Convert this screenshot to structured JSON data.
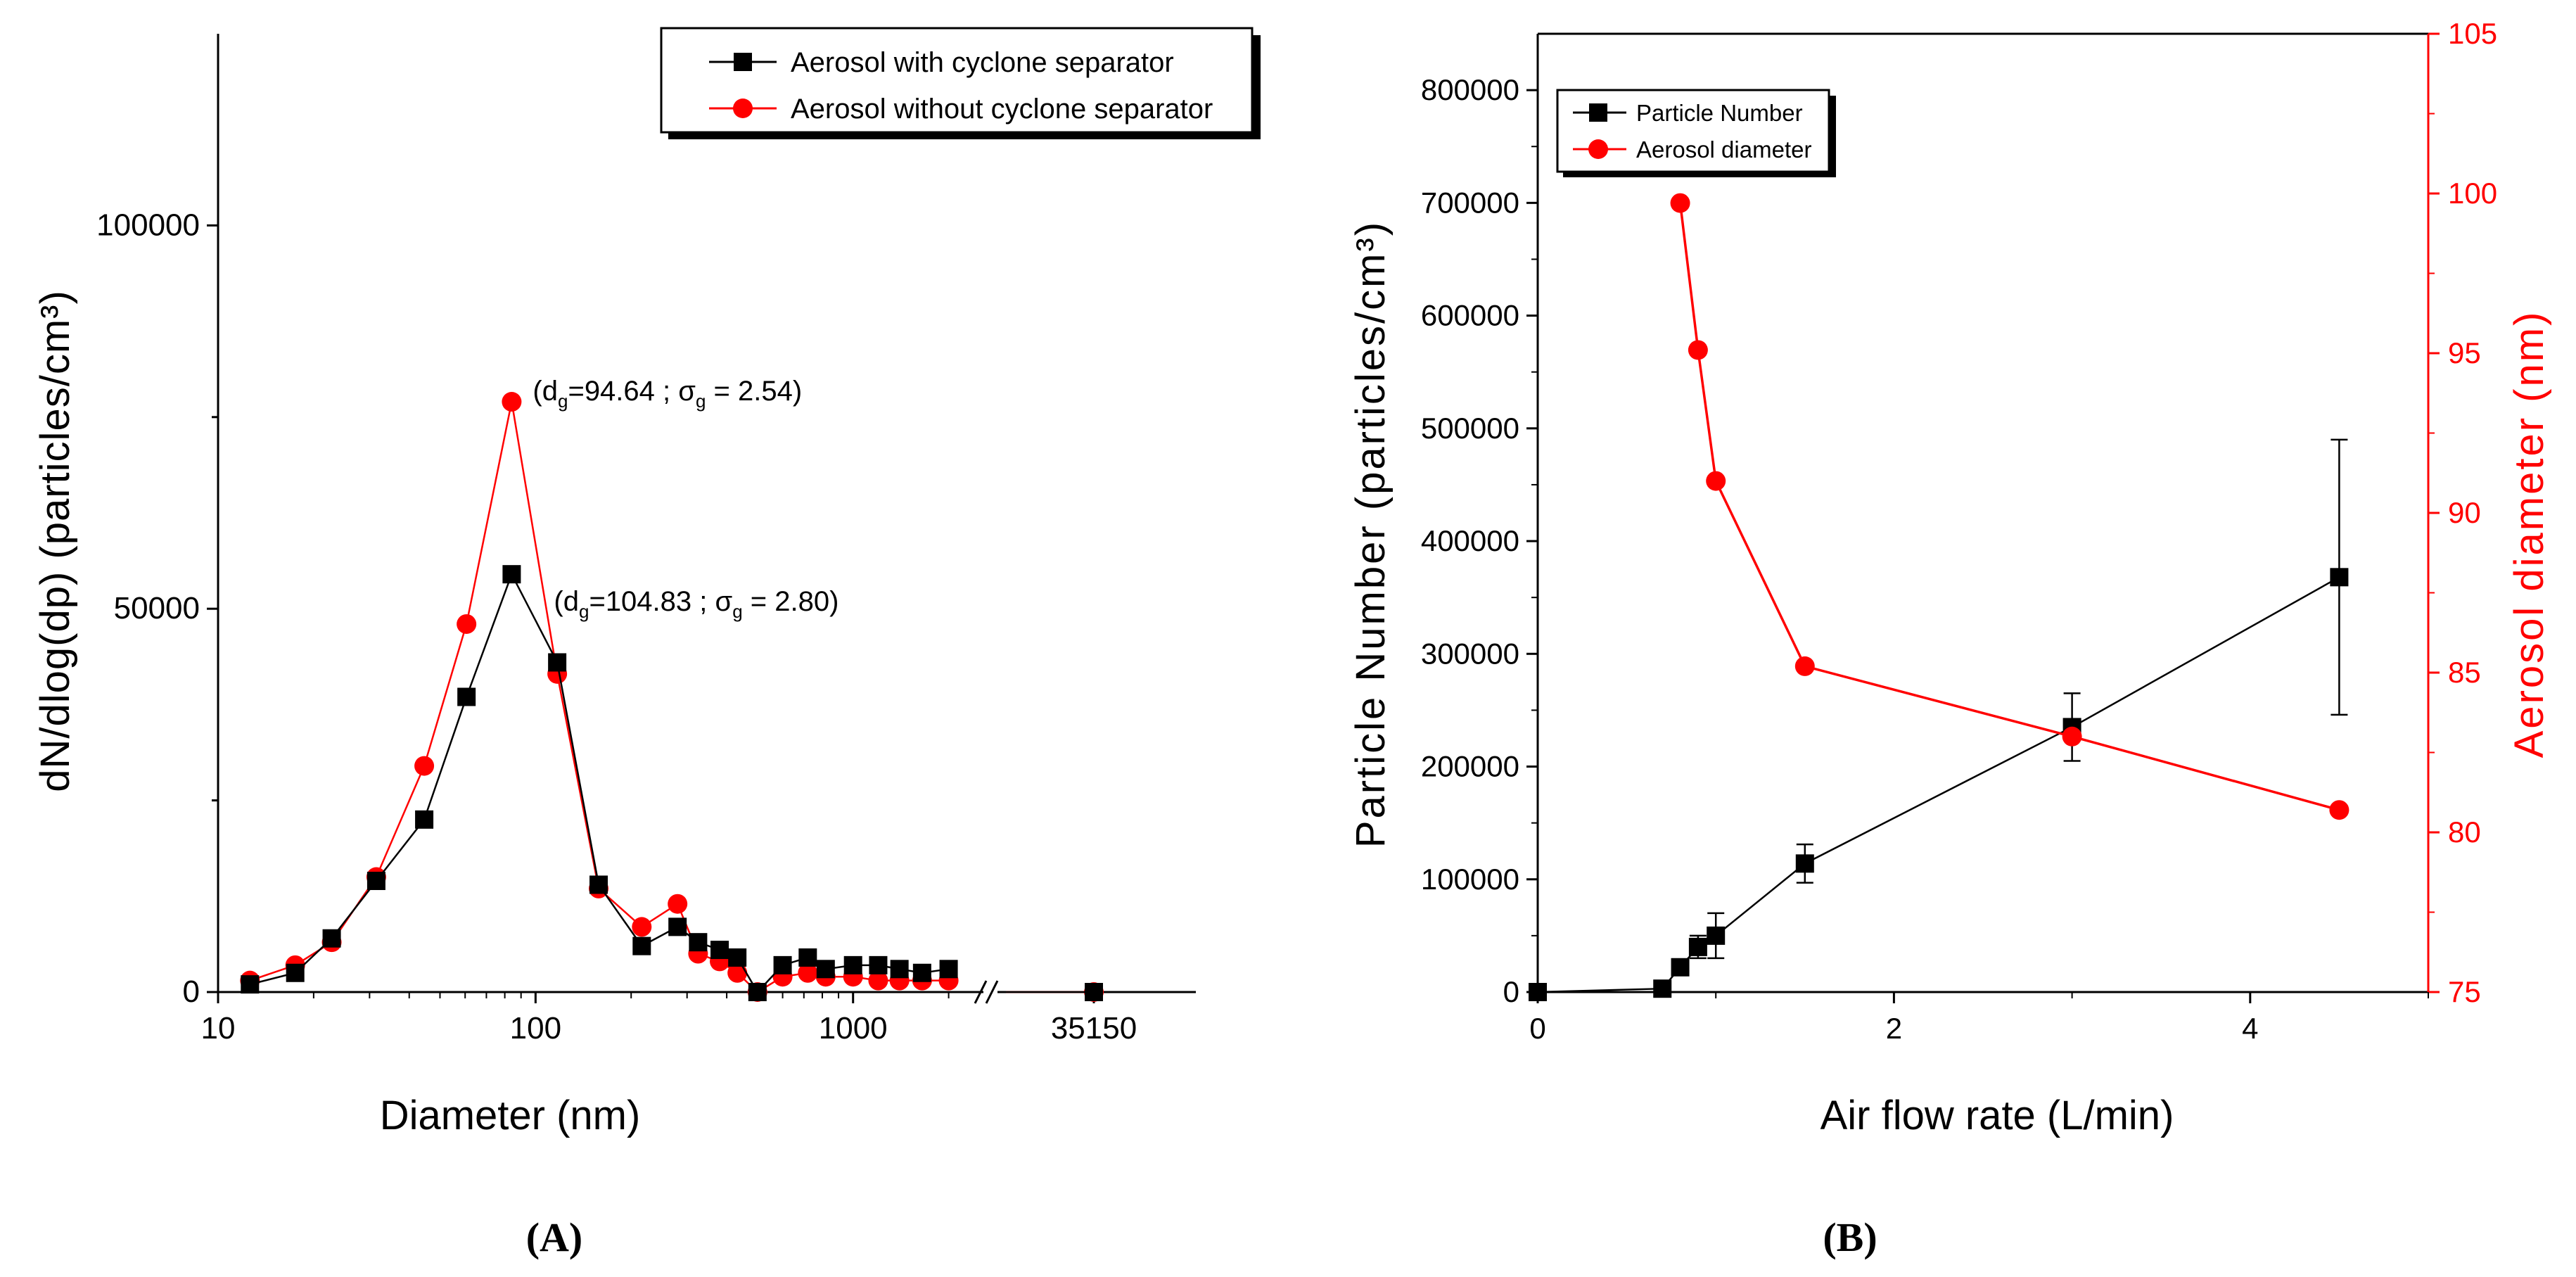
{
  "figure": {
    "panel_a_label": "(A)",
    "panel_b_label": "(B)"
  },
  "colors": {
    "black": "#000000",
    "red": "#ff0000"
  },
  "chart_data": [
    {
      "id": "A",
      "type": "line",
      "xscale": "log",
      "xlabel": "Diameter (nm)",
      "ylabel": "dN/dlog(dp) (particles/cm³)",
      "x_ticks": [
        "10",
        "100",
        "1000"
      ],
      "x_tick_values": [
        10,
        100,
        1000
      ],
      "x_break_tick": "35150",
      "y_ticks": [
        "0",
        "50000",
        "100000"
      ],
      "y_tick_values": [
        0,
        50000,
        100000
      ],
      "ylim": [
        0,
        125000
      ],
      "xlim": [
        10,
        2600
      ],
      "legend_position": "top-right",
      "series": [
        {
          "name": "Aerosol with cyclone separator",
          "color": "#000000",
          "marker": "square",
          "x": [
            12.6,
            17.5,
            22.8,
            31.5,
            44.6,
            60.6,
            84.1,
            117,
            158,
            216,
            280,
            325,
            380,
            432,
            500,
            600,
            720,
            820,
            1000,
            1200,
            1400,
            1650,
            2000
          ],
          "y": [
            1000,
            2500,
            7000,
            14500,
            22500,
            38500,
            54500,
            43000,
            14000,
            6000,
            8500,
            6500,
            5500,
            4500,
            0,
            3500,
            4500,
            3000,
            3500,
            3500,
            3000,
            2500,
            3000
          ],
          "break_x": [
            35150
          ],
          "break_y": [
            0
          ]
        },
        {
          "name": "Aerosol without cyclone separator",
          "color": "#ff0000",
          "marker": "circle",
          "x": [
            12.6,
            17.5,
            22.8,
            31.5,
            44.6,
            60.6,
            84.1,
            117,
            158,
            216,
            280,
            325,
            380,
            432,
            500,
            600,
            720,
            820,
            1000,
            1200,
            1400,
            1650,
            2000
          ],
          "y": [
            1500,
            3500,
            6500,
            15000,
            29500,
            48000,
            77000,
            41500,
            13500,
            8500,
            11500,
            5000,
            4000,
            2500,
            0,
            2000,
            2500,
            2000,
            2000,
            1500,
            1500,
            1500,
            1500
          ],
          "break_x": [
            35150
          ],
          "break_y": [
            0
          ]
        }
      ],
      "annotations": [
        {
          "base": "(d",
          "sub1": "g",
          "mid": "=94.64 ; σ",
          "sub2": "g",
          "tail": " = 2.54)",
          "x": 84.1,
          "y": 77000
        },
        {
          "base": "(d",
          "sub1": "g",
          "mid": "=104.83 ; σ",
          "sub2": "g",
          "tail": " = 2.80)",
          "x": 84.1,
          "y": 54500
        }
      ]
    },
    {
      "id": "B",
      "type": "line",
      "xlabel": "Air flow rate (L/min)",
      "ylabel": "Particle Number (particles/cm³)",
      "y2label": "Aerosol diameter (nm)",
      "xlim": [
        0,
        5
      ],
      "ylim": [
        0,
        850000
      ],
      "y2lim": [
        75,
        105
      ],
      "x_ticks": [
        "0",
        "2",
        "4"
      ],
      "x_tick_values": [
        0,
        2,
        4
      ],
      "y_ticks": [
        "0",
        "100000",
        "200000",
        "300000",
        "400000",
        "500000",
        "600000",
        "700000",
        "800000"
      ],
      "y_tick_values": [
        0,
        100000,
        200000,
        300000,
        400000,
        500000,
        600000,
        700000,
        800000
      ],
      "y2_ticks": [
        "75",
        "80",
        "85",
        "90",
        "95",
        "100",
        "105"
      ],
      "y2_tick_values": [
        75,
        80,
        85,
        90,
        95,
        100,
        105
      ],
      "legend_position": "top-left",
      "series": [
        {
          "name": "Particle Number",
          "axis": "left",
          "color": "#000000",
          "marker": "square",
          "x": [
            0,
            0.7,
            0.8,
            0.9,
            1.0,
            1.5,
            3.0,
            4.5
          ],
          "y": [
            0,
            3000,
            22000,
            40000,
            50000,
            114000,
            235000,
            368000
          ],
          "err": [
            0,
            0,
            5000,
            10000,
            20000,
            17000,
            30000,
            122000
          ]
        },
        {
          "name": "Aerosol diameter",
          "axis": "right",
          "color": "#ff0000",
          "marker": "circle",
          "x": [
            0.8,
            0.9,
            1.0,
            1.5,
            3.0,
            4.5
          ],
          "y": [
            99.7,
            95.1,
            91.0,
            85.2,
            83.0,
            80.7
          ]
        }
      ]
    }
  ]
}
